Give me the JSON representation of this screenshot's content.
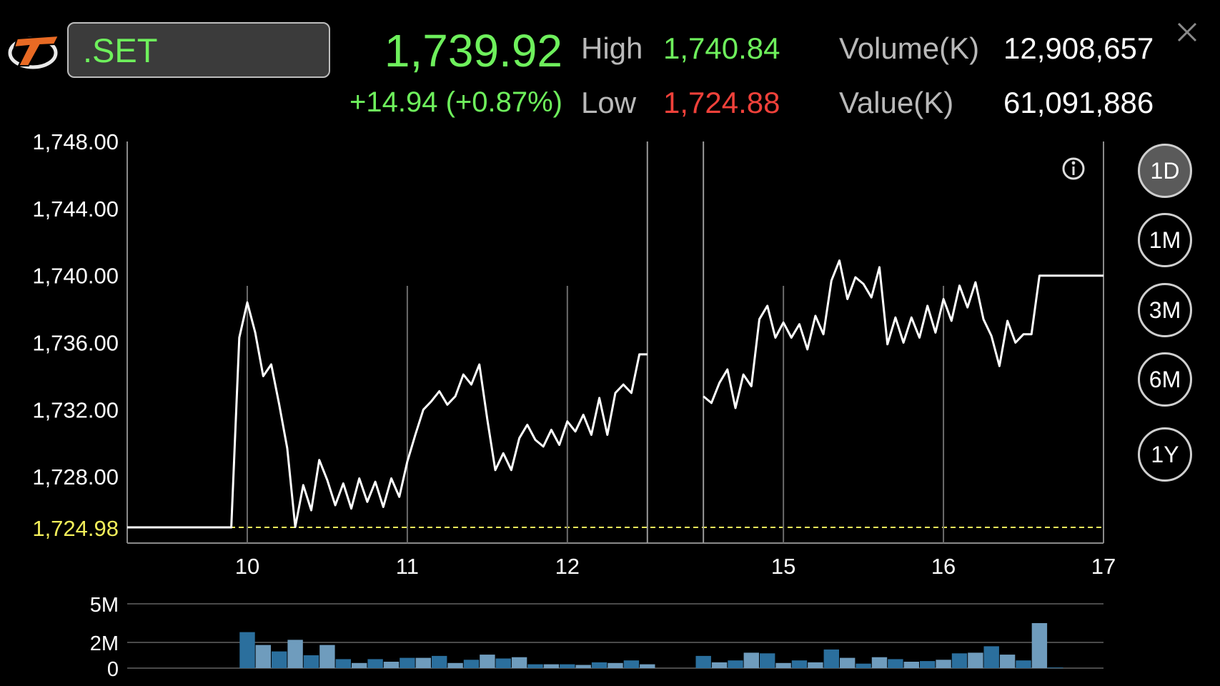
{
  "header": {
    "symbol": ".SET",
    "last_price": "1,739.92",
    "change_text": "+14.94 (+0.87%)",
    "high_label": "High",
    "high_value": "1,740.84",
    "low_label": "Low",
    "low_value": "1,724.88",
    "volume_label": "Volume(K)",
    "volume_value": "12,908,657",
    "value_label": "Value(K)",
    "value_value": "61,091,886"
  },
  "range_buttons": [
    {
      "label": "1D",
      "active": true
    },
    {
      "label": "1M",
      "active": false
    },
    {
      "label": "3M",
      "active": false
    },
    {
      "label": "6M",
      "active": false
    },
    {
      "label": "1Y",
      "active": false
    }
  ],
  "colors": {
    "up": "#6ef05c",
    "down": "#f0413a",
    "reference": "#f2ee5a",
    "line": "#ffffff",
    "volume_dark": "#2b6f9d",
    "volume_light": "#6f9cbd"
  },
  "chart_data": [
    {
      "type": "line",
      "ylim": [
        1724.98,
        1748
      ],
      "y_ticks": [
        "1,748.00",
        "1,744.00",
        "1,740.00",
        "1,736.00",
        "1,732.00",
        "1,728.00"
      ],
      "reference_value": 1724.98,
      "reference_label": "1,724.98",
      "x_ticks": [
        {
          "label": "10",
          "x": 1.5
        },
        {
          "label": "11",
          "x": 3.5
        },
        {
          "label": "12",
          "x": 5.5
        },
        {
          "label": "15",
          "x": 8.2
        },
        {
          "label": "16",
          "x": 10.2
        },
        {
          "label": "17",
          "x": 12.2
        }
      ],
      "session_breaks": [
        6.5,
        7.2
      ],
      "xlim": [
        0,
        12.2
      ],
      "series": [
        {
          "points": [
            [
              0,
              1724.98
            ],
            [
              1.3,
              1724.98
            ],
            [
              1.4,
              1736.3
            ],
            [
              1.5,
              1738.4
            ],
            [
              1.6,
              1736.6
            ],
            [
              1.7,
              1734.0
            ],
            [
              1.8,
              1734.7
            ],
            [
              1.9,
              1732.3
            ],
            [
              2.0,
              1729.7
            ],
            [
              2.1,
              1725.0
            ],
            [
              2.2,
              1727.5
            ],
            [
              2.3,
              1726.0
            ],
            [
              2.4,
              1729.0
            ],
            [
              2.5,
              1727.8
            ],
            [
              2.6,
              1726.3
            ],
            [
              2.7,
              1727.6
            ],
            [
              2.8,
              1726.1
            ],
            [
              2.9,
              1727.9
            ],
            [
              3.0,
              1726.5
            ],
            [
              3.1,
              1727.7
            ],
            [
              3.2,
              1726.2
            ],
            [
              3.3,
              1727.9
            ],
            [
              3.4,
              1726.8
            ],
            [
              3.5,
              1728.9
            ],
            [
              3.6,
              1730.5
            ],
            [
              3.7,
              1732.0
            ],
            [
              3.8,
              1732.5
            ],
            [
              3.9,
              1733.1
            ],
            [
              4.0,
              1732.3
            ],
            [
              4.1,
              1732.8
            ],
            [
              4.2,
              1734.1
            ],
            [
              4.3,
              1733.5
            ],
            [
              4.4,
              1734.7
            ],
            [
              4.5,
              1731.4
            ],
            [
              4.6,
              1728.4
            ],
            [
              4.7,
              1729.4
            ],
            [
              4.8,
              1728.4
            ],
            [
              4.9,
              1730.3
            ],
            [
              5.0,
              1731.1
            ],
            [
              5.1,
              1730.2
            ],
            [
              5.2,
              1729.8
            ],
            [
              5.3,
              1730.8
            ],
            [
              5.4,
              1729.9
            ],
            [
              5.5,
              1731.3
            ],
            [
              5.6,
              1730.7
            ],
            [
              5.7,
              1731.7
            ],
            [
              5.8,
              1730.5
            ],
            [
              5.9,
              1732.7
            ],
            [
              6.0,
              1730.5
            ],
            [
              6.1,
              1733.0
            ],
            [
              6.2,
              1733.5
            ],
            [
              6.3,
              1733.0
            ],
            [
              6.4,
              1735.3
            ],
            [
              6.5,
              1735.3
            ]
          ]
        },
        {
          "points": [
            [
              7.2,
              1732.8
            ],
            [
              7.3,
              1732.4
            ],
            [
              7.4,
              1733.6
            ],
            [
              7.5,
              1734.4
            ],
            [
              7.6,
              1732.1
            ],
            [
              7.7,
              1734.1
            ],
            [
              7.8,
              1733.4
            ],
            [
              7.9,
              1737.4
            ],
            [
              8.0,
              1738.2
            ],
            [
              8.1,
              1736.3
            ],
            [
              8.2,
              1737.2
            ],
            [
              8.3,
              1736.3
            ],
            [
              8.4,
              1737.1
            ],
            [
              8.5,
              1735.6
            ],
            [
              8.6,
              1737.6
            ],
            [
              8.7,
              1736.5
            ],
            [
              8.8,
              1739.7
            ],
            [
              8.9,
              1740.9
            ],
            [
              9.0,
              1738.6
            ],
            [
              9.1,
              1739.9
            ],
            [
              9.2,
              1739.5
            ],
            [
              9.3,
              1738.7
            ],
            [
              9.4,
              1740.5
            ],
            [
              9.5,
              1735.9
            ],
            [
              9.6,
              1737.5
            ],
            [
              9.7,
              1736.0
            ],
            [
              9.8,
              1737.5
            ],
            [
              9.9,
              1736.3
            ],
            [
              10.0,
              1738.2
            ],
            [
              10.1,
              1736.6
            ],
            [
              10.2,
              1738.6
            ],
            [
              10.3,
              1737.3
            ],
            [
              10.4,
              1739.4
            ],
            [
              10.5,
              1738.1
            ],
            [
              10.6,
              1739.6
            ],
            [
              10.7,
              1737.4
            ],
            [
              10.8,
              1736.4
            ],
            [
              10.9,
              1734.6
            ],
            [
              11.0,
              1737.3
            ],
            [
              11.1,
              1736.0
            ],
            [
              11.2,
              1736.5
            ],
            [
              11.3,
              1736.5
            ],
            [
              11.4,
              1740.0
            ],
            [
              12.2,
              1740.0
            ]
          ]
        }
      ]
    },
    {
      "type": "bar",
      "ylim": [
        0,
        5000000
      ],
      "y_ticks": [
        {
          "label": "5M",
          "value": 5000000
        },
        {
          "label": "2M",
          "value": 2000000
        },
        {
          "label": "0",
          "value": 0
        }
      ],
      "bars": [
        [
          1.5,
          2.8
        ],
        [
          1.7,
          1.8
        ],
        [
          1.9,
          1.3
        ],
        [
          2.1,
          2.2
        ],
        [
          2.3,
          1.0
        ],
        [
          2.5,
          1.8
        ],
        [
          2.7,
          0.7
        ],
        [
          2.9,
          0.4
        ],
        [
          3.1,
          0.7
        ],
        [
          3.3,
          0.5
        ],
        [
          3.5,
          0.8
        ],
        [
          3.7,
          0.8
        ],
        [
          3.9,
          0.95
        ],
        [
          4.1,
          0.4
        ],
        [
          4.3,
          0.65
        ],
        [
          4.5,
          1.05
        ],
        [
          4.7,
          0.75
        ],
        [
          4.9,
          0.85
        ],
        [
          5.1,
          0.3
        ],
        [
          5.3,
          0.3
        ],
        [
          5.5,
          0.3
        ],
        [
          5.7,
          0.25
        ],
        [
          5.9,
          0.45
        ],
        [
          6.1,
          0.4
        ],
        [
          6.3,
          0.6
        ],
        [
          6.5,
          0.3
        ],
        [
          7.2,
          0.95
        ],
        [
          7.4,
          0.45
        ],
        [
          7.6,
          0.6
        ],
        [
          7.8,
          1.2
        ],
        [
          8.0,
          1.15
        ],
        [
          8.2,
          0.4
        ],
        [
          8.4,
          0.6
        ],
        [
          8.6,
          0.45
        ],
        [
          8.8,
          1.45
        ],
        [
          9.0,
          0.8
        ],
        [
          9.2,
          0.35
        ],
        [
          9.4,
          0.85
        ],
        [
          9.6,
          0.7
        ],
        [
          9.8,
          0.5
        ],
        [
          10.0,
          0.55
        ],
        [
          10.2,
          0.65
        ],
        [
          10.4,
          1.15
        ],
        [
          10.6,
          1.2
        ],
        [
          10.8,
          1.7
        ],
        [
          11.0,
          1.05
        ],
        [
          11.2,
          0.6
        ],
        [
          11.4,
          3.5
        ],
        [
          11.6,
          0.05
        ]
      ],
      "bar_unit": "M"
    }
  ]
}
